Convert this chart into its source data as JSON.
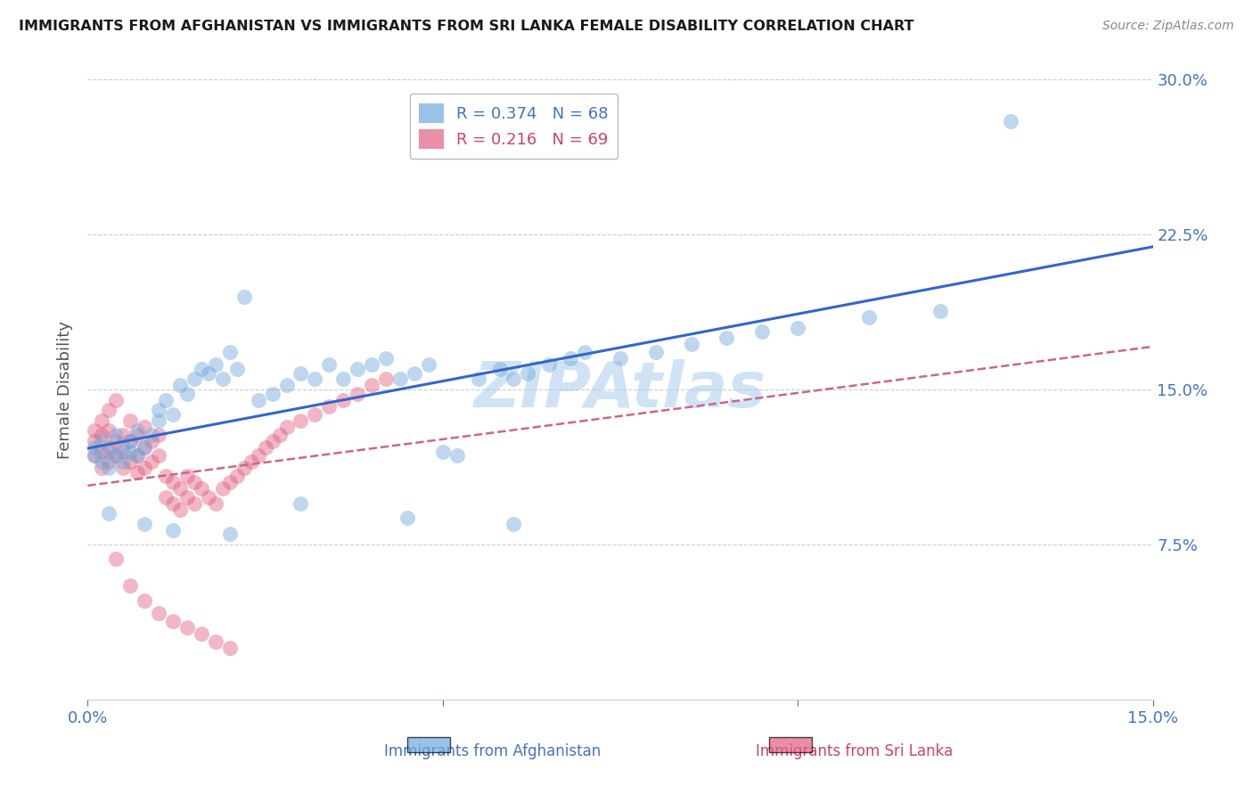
{
  "title": "IMMIGRANTS FROM AFGHANISTAN VS IMMIGRANTS FROM SRI LANKA FEMALE DISABILITY CORRELATION CHART",
  "source": "Source: ZipAtlas.com",
  "ylabel": "Female Disability",
  "xlabel_afghanistan": "Immigrants from Afghanistan",
  "xlabel_sri_lanka": "Immigrants from Sri Lanka",
  "xlim": [
    0.0,
    0.15
  ],
  "ylim": [
    0.0,
    0.3
  ],
  "yticks": [
    0.075,
    0.15,
    0.225,
    0.3
  ],
  "ytick_labels": [
    "7.5%",
    "15.0%",
    "22.5%",
    "30.0%"
  ],
  "xticks": [
    0.0,
    0.05,
    0.1,
    0.15
  ],
  "xtick_labels": [
    "0.0%",
    "",
    "",
    "15.0%"
  ],
  "afghanistan_R": 0.374,
  "afghanistan_N": 68,
  "sri_lanka_R": 0.216,
  "sri_lanka_N": 69,
  "afghanistan_color": "#6fa8dc",
  "sri_lanka_color": "#e06080",
  "trend_afghanistan_color": "#3465cc",
  "trend_sri_lanka_color": "#cc6688",
  "watermark": "ZIPAtlas",
  "watermark_color": "#aaccee",
  "afghanistan_scatter_x": [
    0.001,
    0.001,
    0.002,
    0.002,
    0.003,
    0.003,
    0.004,
    0.004,
    0.005,
    0.005,
    0.006,
    0.006,
    0.007,
    0.007,
    0.008,
    0.009,
    0.01,
    0.01,
    0.011,
    0.012,
    0.013,
    0.014,
    0.015,
    0.016,
    0.017,
    0.018,
    0.019,
    0.02,
    0.021,
    0.022,
    0.024,
    0.026,
    0.028,
    0.03,
    0.032,
    0.034,
    0.036,
    0.038,
    0.04,
    0.042,
    0.044,
    0.046,
    0.048,
    0.05,
    0.052,
    0.055,
    0.058,
    0.06,
    0.062,
    0.065,
    0.068,
    0.07,
    0.075,
    0.08,
    0.085,
    0.09,
    0.095,
    0.1,
    0.11,
    0.12,
    0.13,
    0.003,
    0.008,
    0.012,
    0.02,
    0.03,
    0.045,
    0.06
  ],
  "afghanistan_scatter_y": [
    0.118,
    0.122,
    0.115,
    0.125,
    0.112,
    0.12,
    0.118,
    0.128,
    0.115,
    0.122,
    0.12,
    0.125,
    0.118,
    0.13,
    0.122,
    0.128,
    0.14,
    0.135,
    0.145,
    0.138,
    0.152,
    0.148,
    0.155,
    0.16,
    0.158,
    0.162,
    0.155,
    0.168,
    0.16,
    0.195,
    0.145,
    0.148,
    0.152,
    0.158,
    0.155,
    0.162,
    0.155,
    0.16,
    0.162,
    0.165,
    0.155,
    0.158,
    0.162,
    0.12,
    0.118,
    0.155,
    0.16,
    0.155,
    0.158,
    0.162,
    0.165,
    0.168,
    0.165,
    0.168,
    0.172,
    0.175,
    0.178,
    0.18,
    0.185,
    0.188,
    0.28,
    0.09,
    0.085,
    0.082,
    0.08,
    0.095,
    0.088,
    0.085
  ],
  "sri_lanka_scatter_x": [
    0.001,
    0.001,
    0.001,
    0.002,
    0.002,
    0.002,
    0.002,
    0.003,
    0.003,
    0.003,
    0.003,
    0.004,
    0.004,
    0.004,
    0.005,
    0.005,
    0.005,
    0.006,
    0.006,
    0.006,
    0.007,
    0.007,
    0.007,
    0.008,
    0.008,
    0.008,
    0.009,
    0.009,
    0.01,
    0.01,
    0.011,
    0.011,
    0.012,
    0.012,
    0.013,
    0.013,
    0.014,
    0.014,
    0.015,
    0.015,
    0.016,
    0.017,
    0.018,
    0.019,
    0.02,
    0.021,
    0.022,
    0.023,
    0.024,
    0.025,
    0.026,
    0.027,
    0.028,
    0.03,
    0.032,
    0.034,
    0.036,
    0.038,
    0.04,
    0.042,
    0.004,
    0.006,
    0.008,
    0.01,
    0.012,
    0.014,
    0.016,
    0.018,
    0.02
  ],
  "sri_lanka_scatter_y": [
    0.118,
    0.125,
    0.13,
    0.112,
    0.12,
    0.128,
    0.135,
    0.115,
    0.122,
    0.13,
    0.14,
    0.118,
    0.125,
    0.145,
    0.112,
    0.12,
    0.128,
    0.115,
    0.125,
    0.135,
    0.11,
    0.118,
    0.128,
    0.112,
    0.122,
    0.132,
    0.115,
    0.125,
    0.118,
    0.128,
    0.098,
    0.108,
    0.095,
    0.105,
    0.092,
    0.102,
    0.098,
    0.108,
    0.095,
    0.105,
    0.102,
    0.098,
    0.095,
    0.102,
    0.105,
    0.108,
    0.112,
    0.115,
    0.118,
    0.122,
    0.125,
    0.128,
    0.132,
    0.135,
    0.138,
    0.142,
    0.145,
    0.148,
    0.152,
    0.155,
    0.068,
    0.055,
    0.048,
    0.042,
    0.038,
    0.035,
    0.032,
    0.028,
    0.025
  ]
}
